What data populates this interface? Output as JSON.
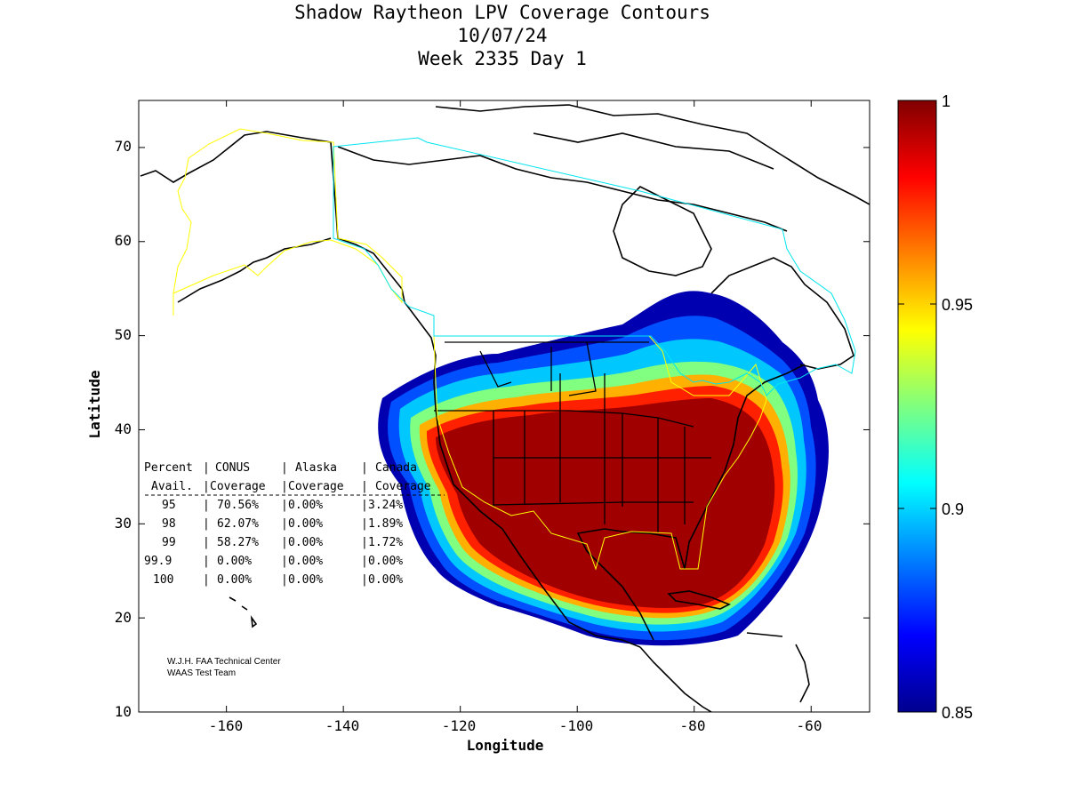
{
  "title": {
    "line1": "Shadow Raytheon LPV Coverage Contours",
    "line2": "10/07/24",
    "line3": "Week 2335 Day 1"
  },
  "axes": {
    "xlabel": "Longitude",
    "ylabel": "Latitude",
    "x_ticks": [
      "-160",
      "-140",
      "-120",
      "-100",
      "-80",
      "-60"
    ],
    "y_ticks": [
      "10",
      "20",
      "30",
      "40",
      "50",
      "60",
      "70"
    ],
    "xlim": [
      -175,
      -50
    ],
    "ylim": [
      10,
      75
    ]
  },
  "colorbar": {
    "ticks": [
      "1",
      "0.95",
      "0.9",
      "0.85"
    ],
    "range": [
      0.85,
      1.0
    ],
    "colormap": "jet"
  },
  "stats_table": {
    "header1": [
      "Percent",
      "CONUS",
      "Alaska",
      "Canada"
    ],
    "header2": [
      "Avail.",
      "Coverage",
      "Coverage",
      "Coverage"
    ],
    "rows": [
      [
        "95",
        "70.56%",
        "0.00%",
        "3.24%"
      ],
      [
        "98",
        "62.07%",
        "0.00%",
        "1.89%"
      ],
      [
        "99",
        "58.27%",
        "0.00%",
        "1.72%"
      ],
      [
        "99.9",
        "0.00%",
        "0.00%",
        "0.00%"
      ],
      [
        "100",
        "0.00%",
        "0.00%",
        "0.00%"
      ]
    ]
  },
  "credits": {
    "line1": "W.J.H. FAA Technical Center",
    "line2": "WAAS Test Team"
  },
  "colors": {
    "conus_boundary": "#ffff00",
    "canada_boundary": "#00e5ee",
    "coastline": "#000000"
  }
}
